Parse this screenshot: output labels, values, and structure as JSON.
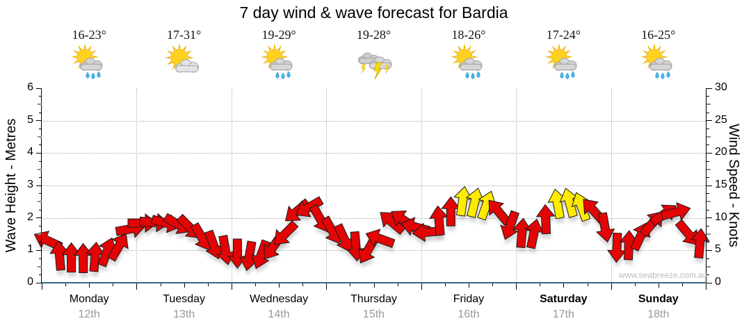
{
  "title": "7 day wind & wave forecast for Bardia",
  "watermark": "www.seabreeze.com.au",
  "axes": {
    "left_label": "Wave Height - Metres",
    "right_label": "Wind Speed - Knots",
    "left_ticks": [
      0,
      1,
      2,
      3,
      4,
      5,
      6
    ],
    "right_ticks": [
      0,
      5,
      10,
      15,
      20,
      25,
      30
    ]
  },
  "days": [
    {
      "name": "Monday",
      "date": "12th",
      "temp": "16-23°",
      "icon": "sun-cloud-rain",
      "bold": false
    },
    {
      "name": "Tuesday",
      "date": "13th",
      "temp": "17-31°",
      "icon": "sun-cloud",
      "bold": false
    },
    {
      "name": "Wednesday",
      "date": "14th",
      "temp": "19-29°",
      "icon": "sun-cloud-rain",
      "bold": false
    },
    {
      "name": "Thursday",
      "date": "15th",
      "temp": "19-28°",
      "icon": "storm",
      "bold": false
    },
    {
      "name": "Friday",
      "date": "16th",
      "temp": "18-26°",
      "icon": "sun-cloud-rain",
      "bold": false
    },
    {
      "name": "Saturday",
      "date": "17th",
      "temp": "17-24°",
      "icon": "sun-cloud-rain",
      "bold": true
    },
    {
      "name": "Sunday",
      "date": "18th",
      "temp": "16-25°",
      "icon": "sun-cloud-rain",
      "bold": true
    }
  ],
  "colors": {
    "arrow_red": "#e30505",
    "arrow_yellow": "#ffec00",
    "arrow_outline": "#1a1a1a",
    "bottom_axis": "#2e688c",
    "grid": "#a8a8a8",
    "date_gray": "#999999",
    "watermark_gray": "#bbbbbb"
  },
  "chart_data": {
    "type": "wind-arrows",
    "title": "7 day wind & wave forecast for Bardia",
    "x_axis": {
      "days": [
        "Monday 12th",
        "Tuesday 13th",
        "Wednesday 14th",
        "Thursday 15th",
        "Friday 16th",
        "Saturday 17th",
        "Sunday 18th"
      ],
      "points_per_day": 8,
      "interval": "3-hourly"
    },
    "y_left": {
      "label": "Wave Height - Metres",
      "range": [
        0,
        6
      ],
      "gridlines": [
        1,
        2,
        3,
        4,
        5
      ]
    },
    "y_right": {
      "label": "Wind Speed - Knots",
      "range": [
        0,
        30
      ],
      "ticks": [
        0,
        5,
        10,
        15,
        20,
        25,
        30
      ]
    },
    "legend": "arrow vertical position = wind speed in knots; arrow rotation = wind direction (0 = toward top/N); yellow = stronger wind period",
    "arrows": [
      {
        "knots": 6.5,
        "dir": 295,
        "color": "red"
      },
      {
        "knots": 4.2,
        "dir": 355,
        "color": "red"
      },
      {
        "knots": 3.9,
        "dir": 0,
        "color": "red"
      },
      {
        "knots": 3.8,
        "dir": 0,
        "color": "red"
      },
      {
        "knots": 4.0,
        "dir": 5,
        "color": "red"
      },
      {
        "knots": 4.8,
        "dir": 20,
        "color": "red"
      },
      {
        "knots": 5.6,
        "dir": 30,
        "color": "red"
      },
      {
        "knots": 8.3,
        "dir": 80,
        "color": "red"
      },
      {
        "knots": 9.2,
        "dir": 90,
        "color": "red"
      },
      {
        "knots": 9.3,
        "dir": 95,
        "color": "red"
      },
      {
        "knots": 9.2,
        "dir": 105,
        "color": "red"
      },
      {
        "knots": 9.0,
        "dir": 120,
        "color": "red"
      },
      {
        "knots": 8.5,
        "dir": 135,
        "color": "red"
      },
      {
        "knots": 7.0,
        "dir": 150,
        "color": "red"
      },
      {
        "knots": 5.8,
        "dir": 160,
        "color": "red"
      },
      {
        "knots": 5.0,
        "dir": 170,
        "color": "red"
      },
      {
        "knots": 4.5,
        "dir": 180,
        "color": "red"
      },
      {
        "knots": 4.1,
        "dir": 190,
        "color": "red"
      },
      {
        "knots": 4.3,
        "dir": 200,
        "color": "red"
      },
      {
        "knots": 5.5,
        "dir": 215,
        "color": "red"
      },
      {
        "knots": 7.5,
        "dir": 225,
        "color": "red"
      },
      {
        "knots": 11.0,
        "dir": 230,
        "color": "red"
      },
      {
        "knots": 11.6,
        "dir": 240,
        "color": "red"
      },
      {
        "knots": 9.8,
        "dir": 150,
        "color": "red"
      },
      {
        "knots": 8.0,
        "dir": 150,
        "color": "red"
      },
      {
        "knots": 6.8,
        "dir": 155,
        "color": "red"
      },
      {
        "knots": 5.6,
        "dir": 175,
        "color": "red"
      },
      {
        "knots": 5.0,
        "dir": 210,
        "color": "red"
      },
      {
        "knots": 6.8,
        "dir": 290,
        "color": "red"
      },
      {
        "knots": 9.4,
        "dir": 310,
        "color": "red"
      },
      {
        "knots": 9.7,
        "dir": 305,
        "color": "red"
      },
      {
        "knots": 8.6,
        "dir": 285,
        "color": "red"
      },
      {
        "knots": 7.8,
        "dir": 265,
        "color": "red"
      },
      {
        "knots": 9.6,
        "dir": 355,
        "color": "red"
      },
      {
        "knots": 11.0,
        "dir": 0,
        "color": "red"
      },
      {
        "knots": 12.6,
        "dir": 8,
        "color": "yellow"
      },
      {
        "knots": 12.4,
        "dir": 14,
        "color": "yellow"
      },
      {
        "knots": 12.0,
        "dir": 20,
        "color": "yellow"
      },
      {
        "knots": 11.0,
        "dir": 320,
        "color": "red"
      },
      {
        "knots": 8.8,
        "dir": 200,
        "color": "red"
      },
      {
        "knots": 7.7,
        "dir": 5,
        "color": "red"
      },
      {
        "knots": 7.6,
        "dir": 12,
        "color": "red"
      },
      {
        "knots": 9.8,
        "dir": 358,
        "color": "red"
      },
      {
        "knots": 12.2,
        "dir": 350,
        "color": "yellow"
      },
      {
        "knots": 12.4,
        "dir": 345,
        "color": "yellow"
      },
      {
        "knots": 11.8,
        "dir": 340,
        "color": "yellow"
      },
      {
        "knots": 11.2,
        "dir": 318,
        "color": "red"
      },
      {
        "knots": 8.5,
        "dir": 170,
        "color": "red"
      },
      {
        "knots": 5.4,
        "dir": 182,
        "color": "red"
      },
      {
        "knots": 5.8,
        "dir": 2,
        "color": "red"
      },
      {
        "knots": 7.2,
        "dir": 25,
        "color": "red"
      },
      {
        "knots": 9.2,
        "dir": 40,
        "color": "red"
      },
      {
        "knots": 10.6,
        "dir": 55,
        "color": "red"
      },
      {
        "knots": 10.9,
        "dir": 75,
        "color": "red"
      },
      {
        "knots": 7.6,
        "dir": 140,
        "color": "red"
      },
      {
        "knots": 6.1,
        "dir": 5,
        "color": "red"
      }
    ]
  }
}
